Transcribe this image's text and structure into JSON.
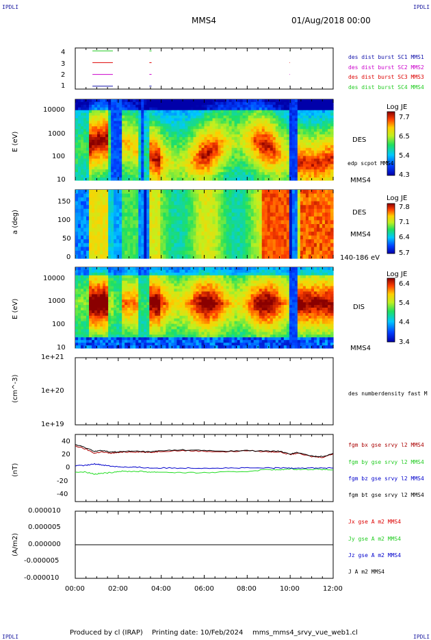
{
  "header": {
    "corner_tl": "IPDLI",
    "corner_tr": "IPDLI",
    "corner_bl": "IPDLI",
    "corner_br": "IPDLI",
    "spacecraft": "MMS4",
    "datetime": "01/Aug/2018 00:00"
  },
  "footer": {
    "credit": "Produced by cl (IRAP)",
    "printing": "Printing date: 10/Feb/2024",
    "filename": "mms_mms4_srvy_vue_web1.cl"
  },
  "colors": {
    "mms1": "#1111aa",
    "mms2": "#cc00cc",
    "mms3": "#dd0000",
    "mms4": "#22cc22",
    "bx": "#aa0000",
    "by": "#22dd22",
    "bz": "#0000cc",
    "bt": "#000000"
  },
  "chart_data": [
    {
      "type": "line",
      "panel": "burst-availability",
      "yticks": [
        "1",
        "2",
        "3",
        "4"
      ],
      "series": [
        {
          "name": "des dist burst SC1 MMS1",
          "y": 1,
          "segments_h": [
            [
              0.8,
              1.75
            ],
            [
              3.45,
              3.55
            ],
            [
              9.97,
              9.99
            ]
          ]
        },
        {
          "name": "des dist burst SC2 MMS2",
          "y": 2,
          "segments_h": [
            [
              0.8,
              1.75
            ],
            [
              3.45,
              3.55
            ],
            [
              9.97,
              9.99
            ]
          ]
        },
        {
          "name": "des dist burst SC3 MMS3",
          "y": 3,
          "segments_h": [
            [
              0.8,
              1.75
            ],
            [
              3.45,
              3.55
            ],
            [
              9.97,
              9.99
            ]
          ]
        },
        {
          "name": "des dist burst SC4 MMS4",
          "y": 4,
          "segments_h": [
            [
              0.8,
              1.75
            ],
            [
              3.45,
              3.55
            ],
            [
              9.97,
              9.99
            ]
          ]
        }
      ],
      "xlim": [
        0,
        12
      ]
    },
    {
      "type": "heatmap",
      "panel": "des-energy-spectrogram",
      "ylabel": "E (eV)",
      "yticks": [
        "10",
        "100",
        "1000",
        "10000"
      ],
      "instrument_label": "DES",
      "overlay_label": "edp scpot MMS4",
      "sub_label": "MMS4",
      "colorbar_title": "Log JE",
      "colorbar_ticks": [
        "7.7",
        "6.5",
        "5.4",
        "4.3"
      ],
      "ylim_log10": [
        1,
        4.4
      ]
    },
    {
      "type": "heatmap",
      "panel": "des-pitch-angle",
      "ylabel": "a (deg)",
      "yticks": [
        "0",
        "50",
        "100",
        "150"
      ],
      "instrument_label": "DES",
      "sub_label": "MMS4",
      "energy_range": "140-186 eV",
      "colorbar_title": "Log JE",
      "colorbar_ticks": [
        "7.8",
        "7.1",
        "6.4",
        "5.7"
      ],
      "ylim": [
        0,
        180
      ]
    },
    {
      "type": "heatmap",
      "panel": "dis-energy-spectrogram",
      "ylabel": "E (eV)",
      "yticks": [
        "10",
        "100",
        "1000",
        "10000"
      ],
      "instrument_label": "DIS",
      "sub_label": "MMS4",
      "colorbar_title": "Log JE",
      "colorbar_ticks": [
        "6.4",
        "5.4",
        "4.4",
        "3.4"
      ],
      "ylim_log10": [
        1,
        4.4
      ]
    },
    {
      "type": "line",
      "panel": "density",
      "ylabel": "(cm^-3)",
      "yticks": [
        "1e+19",
        "1e+20",
        "1e+21"
      ],
      "series": [
        {
          "name": "des numberdensity fast M",
          "values": []
        }
      ]
    },
    {
      "type": "line",
      "panel": "magnetic-field",
      "ylabel": "(nT)",
      "yticks": [
        "-40",
        "-20",
        "0",
        "20",
        "40"
      ],
      "ylim": [
        -50,
        50
      ],
      "series": [
        {
          "name": "fgm bx gse srvy l2 MMS4",
          "x": [
            0,
            0.5,
            0.9,
            1.2,
            1.6,
            2.0,
            2.5,
            3.0,
            3.5,
            4.0,
            5.0,
            6.0,
            7.0,
            8.0,
            9.0,
            9.5,
            10.0,
            10.3,
            11.0,
            11.5,
            12.0
          ],
          "values": [
            33,
            28,
            22,
            24,
            22,
            23,
            24,
            24,
            23,
            25,
            26,
            25,
            24,
            26,
            24,
            24,
            20,
            22,
            17,
            16,
            21
          ]
        },
        {
          "name": "fgm by gse srvy l2 MMS4",
          "x": [
            0,
            0.5,
            0.9,
            1.2,
            1.6,
            2.0,
            2.5,
            3.0,
            3.5,
            4.0,
            5.0,
            6.0,
            7.0,
            8.0,
            9.0,
            9.5,
            10.0,
            10.3,
            11.0,
            11.5,
            12.0
          ],
          "values": [
            -6,
            -6,
            -9,
            -8,
            -7,
            -5,
            -5,
            -5,
            -6,
            -6,
            -7,
            -7,
            -6,
            -5,
            -2,
            -3,
            -1,
            -2,
            -2,
            -2,
            -3
          ]
        },
        {
          "name": "fgm bz gse srvy l2 MMS4",
          "x": [
            0,
            0.5,
            0.9,
            1.2,
            1.6,
            2.0,
            2.5,
            3.0,
            3.5,
            4.0,
            5.0,
            6.0,
            7.0,
            8.0,
            9.0,
            9.5,
            10.0,
            10.3,
            11.0,
            11.5,
            12.0
          ],
          "values": [
            3,
            4,
            6,
            5,
            3,
            2,
            1,
            1,
            0,
            0,
            0,
            0,
            0,
            0,
            0,
            0,
            0,
            0,
            0,
            0,
            0
          ]
        },
        {
          "name": "fgm bt gse srvy l2 MMS4",
          "x": [
            0,
            0.5,
            0.9,
            1.2,
            1.6,
            2.0,
            2.5,
            3.0,
            3.5,
            4.0,
            5.0,
            6.0,
            7.0,
            8.0,
            9.0,
            9.5,
            10.0,
            10.3,
            11.0,
            11.5,
            12.0
          ],
          "values": [
            35,
            30,
            25,
            26,
            24,
            24,
            25,
            25,
            24,
            26,
            27,
            26,
            25,
            26,
            25,
            25,
            21,
            23,
            18,
            17,
            22
          ]
        }
      ]
    },
    {
      "type": "line",
      "panel": "current-density",
      "ylabel": "(A/m2)",
      "yticks": [
        "-0.000010",
        "-0.000005",
        "0.000000",
        "0.000005",
        "0.000010"
      ],
      "ylim": [
        -1e-05,
        1e-05
      ],
      "series": [
        {
          "name": "Jx gse A m2 MMS4",
          "values": []
        },
        {
          "name": "Jy gse A m2 MMS4",
          "values": []
        },
        {
          "name": "Jz gse A m2 MMS4",
          "values": []
        },
        {
          "name": "J A m2 MMS4",
          "x": [
            0,
            12
          ],
          "values": [
            0,
            0
          ]
        }
      ]
    }
  ],
  "xaxis": {
    "ticks": [
      "00:00",
      "02:00",
      "04:00",
      "06:00",
      "08:00",
      "10:00",
      "12:00"
    ],
    "xlim": [
      0,
      12
    ]
  }
}
